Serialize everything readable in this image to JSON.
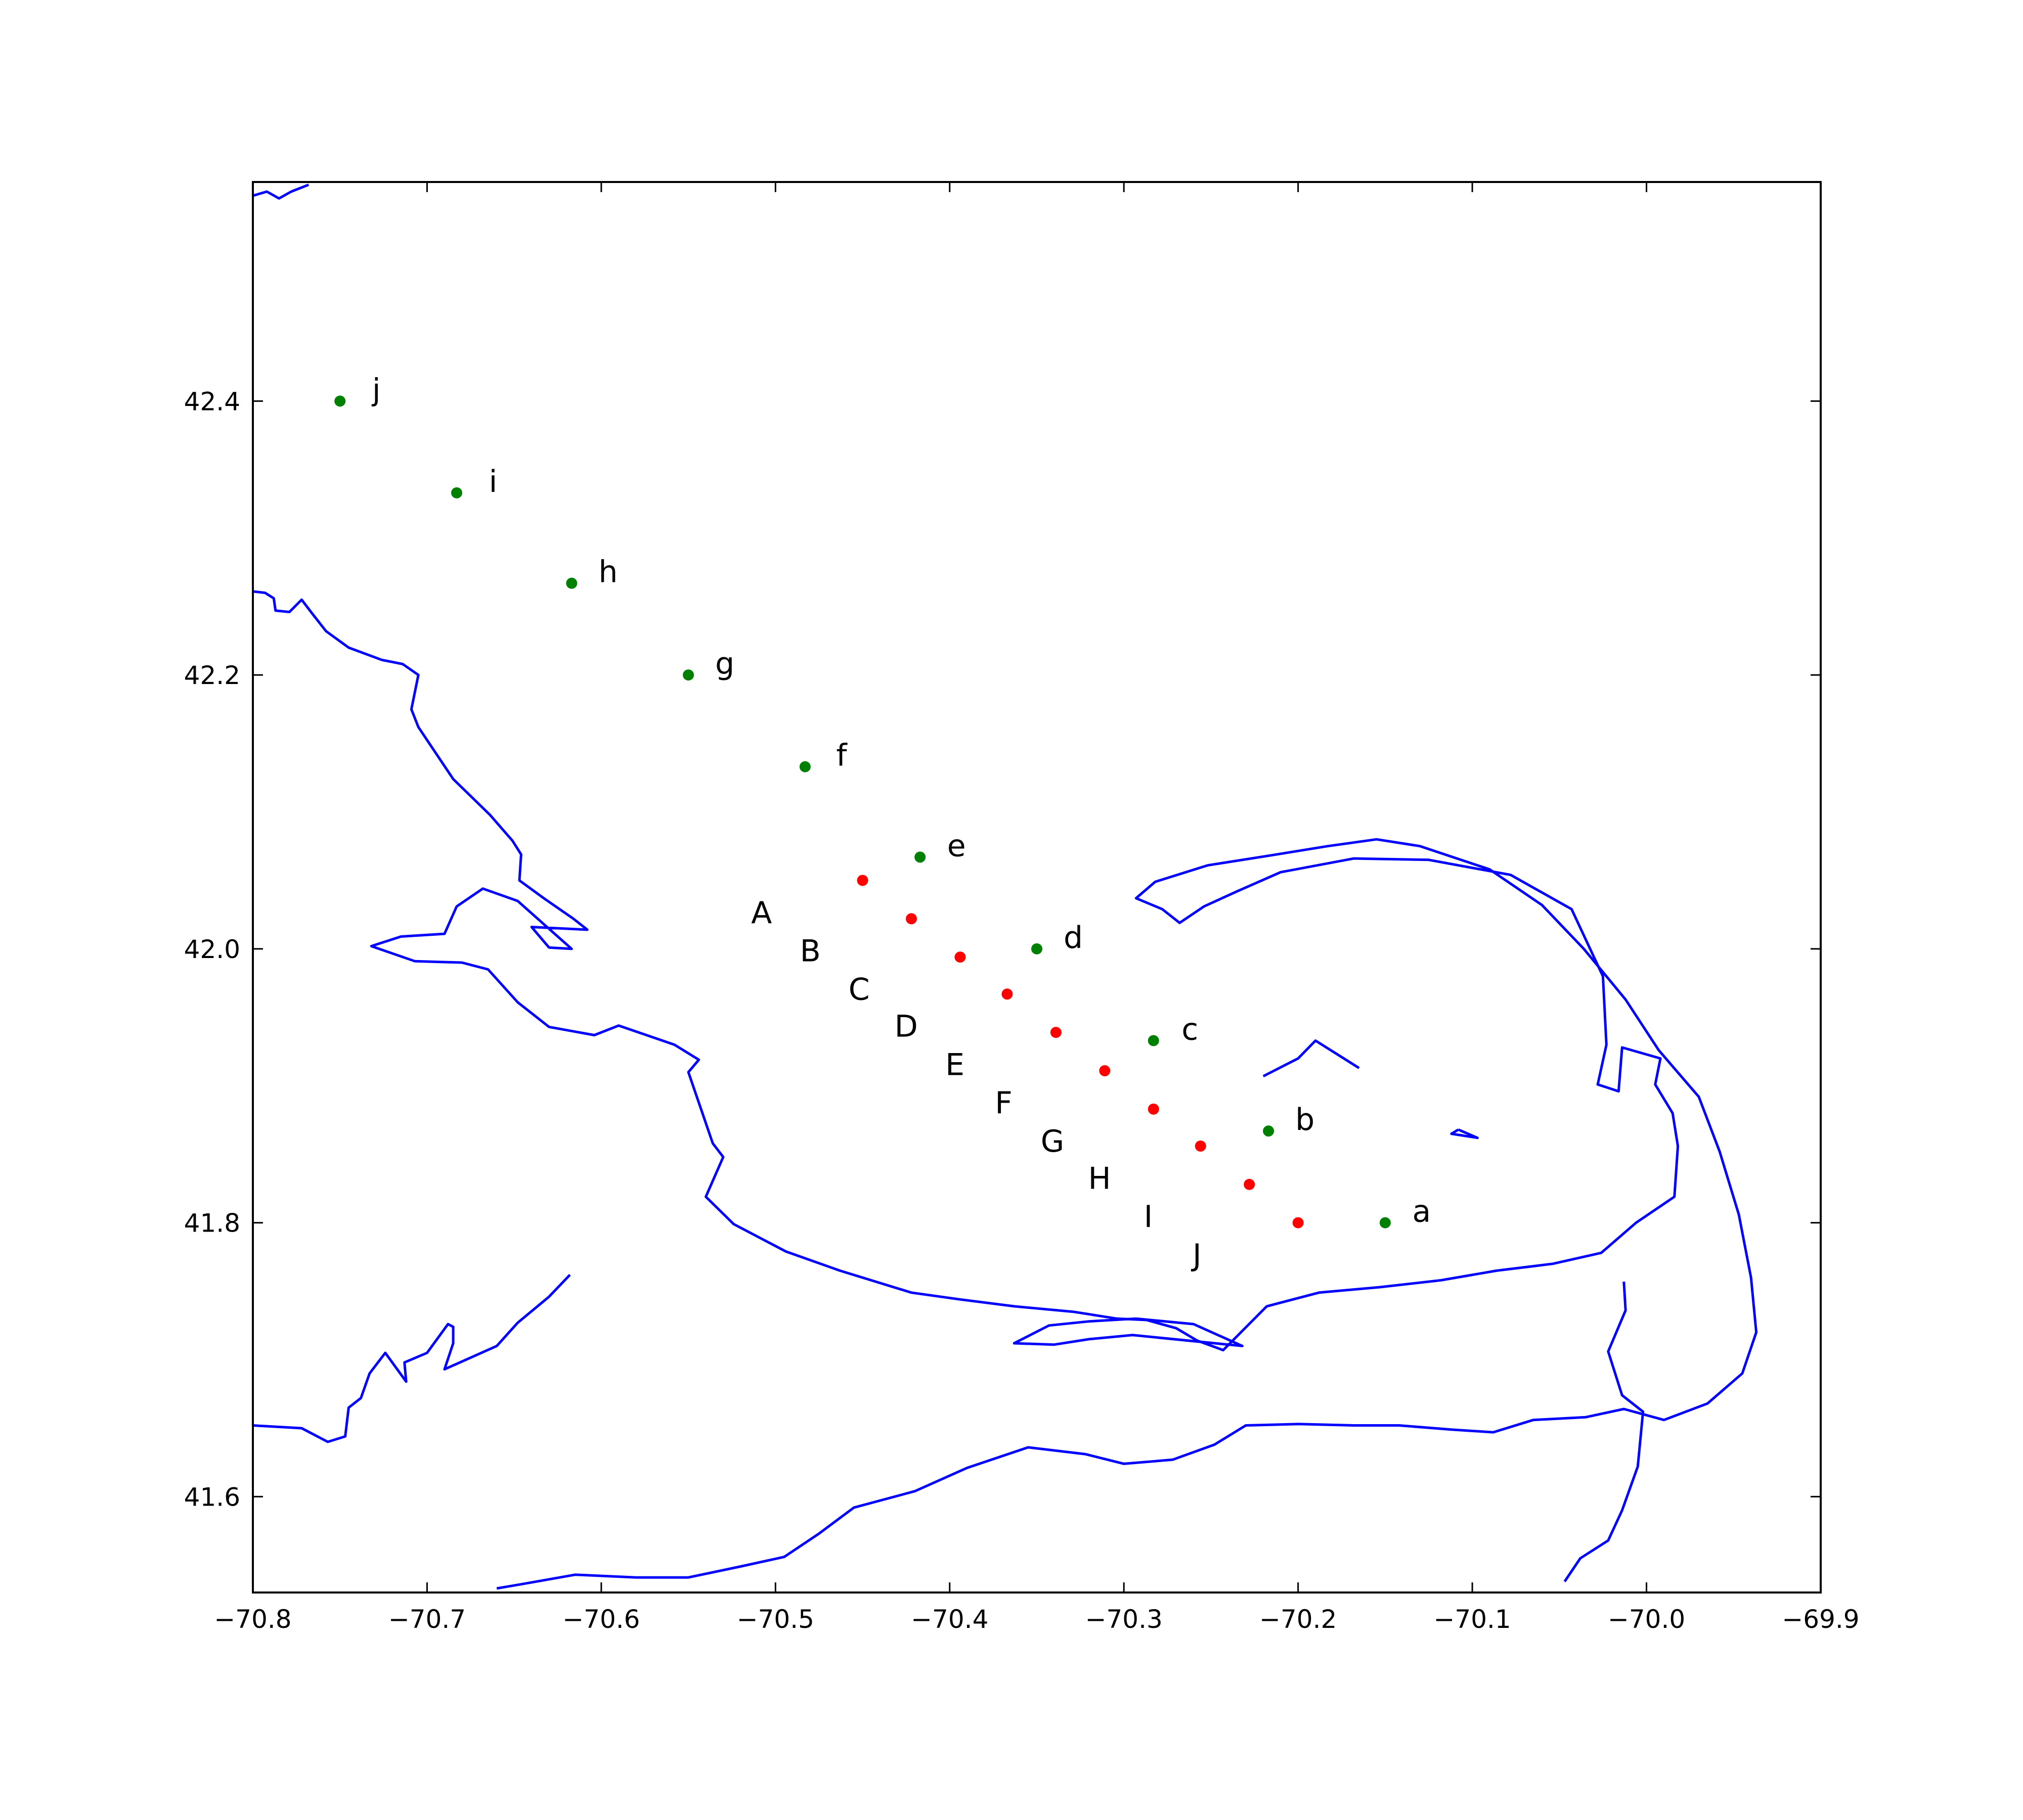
{
  "chart_data": {
    "type": "scatter",
    "title": "",
    "xlabel": "",
    "ylabel": "",
    "xlim": [
      -70.8,
      -69.9
    ],
    "ylim": [
      41.53,
      42.56
    ],
    "grid": false,
    "legend": "none",
    "x_ticks": [
      -70.8,
      -70.7,
      -70.6,
      -70.5,
      -70.4,
      -70.3,
      -70.2,
      -70.1,
      -70.0,
      -69.9
    ],
    "x_tick_labels": [
      "−70.8",
      "−70.7",
      "−70.6",
      "−70.5",
      "−70.4",
      "−70.3",
      "−70.2",
      "−70.1",
      "−70.0",
      "−69.9"
    ],
    "y_ticks": [
      41.6,
      41.8,
      42.0,
      42.2,
      42.4
    ],
    "y_tick_labels": [
      "41.6",
      "41.8",
      "42.0",
      "42.2",
      "42.4"
    ],
    "colors": {
      "coastline": "#0000ff",
      "green_points": "#008000",
      "red_points": "#ff0000",
      "axes": "#000000"
    },
    "green_points": [
      {
        "label": "a",
        "x": -70.15,
        "y": 41.8
      },
      {
        "label": "b",
        "x": -70.217,
        "y": 41.867
      },
      {
        "label": "c",
        "x": -70.283,
        "y": 41.933
      },
      {
        "label": "d",
        "x": -70.35,
        "y": 42.0
      },
      {
        "label": "e",
        "x": -70.417,
        "y": 42.067
      },
      {
        "label": "f",
        "x": -70.483,
        "y": 42.133
      },
      {
        "label": "g",
        "x": -70.55,
        "y": 42.2
      },
      {
        "label": "h",
        "x": -70.617,
        "y": 42.267
      },
      {
        "label": "i",
        "x": -70.683,
        "y": 42.333
      },
      {
        "label": "j",
        "x": -70.75,
        "y": 42.4
      }
    ],
    "red_points": [
      {
        "x": -70.45,
        "y": 42.05
      },
      {
        "x": -70.422,
        "y": 42.022
      },
      {
        "x": -70.394,
        "y": 41.994
      },
      {
        "x": -70.367,
        "y": 41.967
      },
      {
        "x": -70.339,
        "y": 41.939
      },
      {
        "x": -70.311,
        "y": 41.911
      },
      {
        "x": -70.283,
        "y": 41.883
      },
      {
        "x": -70.256,
        "y": 41.856
      },
      {
        "x": -70.228,
        "y": 41.828
      },
      {
        "x": -70.2,
        "y": 41.8
      }
    ],
    "red_labels": [
      {
        "label": "A",
        "x": -70.508,
        "y": 42.027
      },
      {
        "label": "B",
        "x": -70.48,
        "y": 41.999
      },
      {
        "label": "C",
        "x": -70.452,
        "y": 41.971
      },
      {
        "label": "D",
        "x": -70.425,
        "y": 41.944
      },
      {
        "label": "E",
        "x": -70.397,
        "y": 41.916
      },
      {
        "label": "F",
        "x": -70.369,
        "y": 41.888
      },
      {
        "label": "G",
        "x": -70.341,
        "y": 41.86
      },
      {
        "label": "H",
        "x": -70.314,
        "y": 41.833
      },
      {
        "label": "I",
        "x": -70.286,
        "y": 41.805
      },
      {
        "label": "J",
        "x": -70.258,
        "y": 41.777
      }
    ],
    "coastlines": [
      [
        [
          -70.8,
          42.55
        ],
        [
          -70.792,
          42.553
        ],
        [
          -70.785,
          42.548
        ],
        [
          -70.778,
          42.553
        ],
        [
          -70.768,
          42.558
        ]
      ],
      [
        [
          -70.8,
          42.261
        ],
        [
          -70.793,
          42.26
        ],
        [
          -70.788,
          42.256
        ],
        [
          -70.787,
          42.247
        ],
        [
          -70.779,
          42.246
        ],
        [
          -70.772,
          42.255
        ],
        [
          -70.766,
          42.245
        ],
        [
          -70.758,
          42.232
        ],
        [
          -70.745,
          42.22
        ],
        [
          -70.726,
          42.211
        ],
        [
          -70.714,
          42.208
        ],
        [
          -70.705,
          42.2
        ],
        [
          -70.709,
          42.175
        ],
        [
          -70.705,
          42.162
        ],
        [
          -70.685,
          42.124
        ],
        [
          -70.664,
          42.098
        ],
        [
          -70.651,
          42.079
        ],
        [
          -70.646,
          42.069
        ],
        [
          -70.647,
          42.05
        ],
        [
          -70.633,
          42.037
        ],
        [
          -70.616,
          42.022
        ],
        [
          -70.608,
          42.014
        ],
        [
          -70.64,
          42.016
        ],
        [
          -70.63,
          42.001
        ],
        [
          -70.617,
          42.0
        ],
        [
          -70.625,
          42.009
        ],
        [
          -70.648,
          42.035
        ],
        [
          -70.668,
          42.044
        ],
        [
          -70.683,
          42.031
        ],
        [
          -70.69,
          42.011
        ],
        [
          -70.715,
          42.009
        ],
        [
          -70.732,
          42.002
        ],
        [
          -70.707,
          41.991
        ],
        [
          -70.68,
          41.99
        ],
        [
          -70.665,
          41.985
        ],
        [
          -70.648,
          41.961
        ],
        [
          -70.63,
          41.943
        ],
        [
          -70.604,
          41.937
        ],
        [
          -70.59,
          41.944
        ],
        [
          -70.558,
          41.93
        ],
        [
          -70.544,
          41.919
        ],
        [
          -70.55,
          41.91
        ],
        [
          -70.543,
          41.884
        ],
        [
          -70.536,
          41.858
        ],
        [
          -70.53,
          41.848
        ],
        [
          -70.54,
          41.819
        ],
        [
          -70.524,
          41.799
        ],
        [
          -70.494,
          41.779
        ],
        [
          -70.463,
          41.765
        ],
        [
          -70.422,
          41.749
        ],
        [
          -70.394,
          41.744
        ],
        [
          -70.363,
          41.739
        ],
        [
          -70.329,
          41.735
        ],
        [
          -70.304,
          41.73
        ],
        [
          -70.287,
          41.729
        ],
        [
          -70.27,
          41.723
        ],
        [
          -70.258,
          41.714
        ],
        [
          -70.243,
          41.707
        ],
        [
          -70.218,
          41.739
        ],
        [
          -70.188,
          41.749
        ],
        [
          -70.153,
          41.753
        ],
        [
          -70.118,
          41.758
        ],
        [
          -70.086,
          41.765
        ],
        [
          -70.054,
          41.77
        ],
        [
          -70.026,
          41.778
        ],
        [
          -70.006,
          41.8
        ],
        [
          -69.984,
          41.819
        ],
        [
          -69.982,
          41.856
        ],
        [
          -69.985,
          41.88
        ],
        [
          -69.995,
          41.901
        ],
        [
          -69.992,
          41.92
        ],
        [
          -70.014,
          41.928
        ],
        [
          -70.016,
          41.896
        ],
        [
          -70.028,
          41.901
        ],
        [
          -70.023,
          41.93
        ],
        [
          -70.025,
          41.98
        ],
        [
          -70.043,
          42.029
        ],
        [
          -70.078,
          42.054
        ],
        [
          -70.125,
          42.065
        ],
        [
          -70.168,
          42.066
        ],
        [
          -70.21,
          42.056
        ],
        [
          -70.235,
          42.042
        ],
        [
          -70.254,
          42.031
        ],
        [
          -70.268,
          42.019
        ],
        [
          -70.278,
          42.029
        ],
        [
          -70.293,
          42.037
        ],
        [
          -70.282,
          42.049
        ],
        [
          -70.252,
          42.061
        ],
        [
          -70.217,
          42.068
        ],
        [
          -70.183,
          42.075
        ],
        [
          -70.155,
          42.08
        ],
        [
          -70.13,
          42.075
        ],
        [
          -70.09,
          42.058
        ],
        [
          -70.06,
          42.032
        ],
        [
          -70.036,
          42.0
        ],
        [
          -70.012,
          41.963
        ],
        [
          -69.993,
          41.926
        ],
        [
          -69.97,
          41.892
        ],
        [
          -69.958,
          41.852
        ],
        [
          -69.947,
          41.806
        ],
        [
          -69.94,
          41.76
        ],
        [
          -69.937,
          41.72
        ],
        [
          -69.945,
          41.69
        ],
        [
          -69.965,
          41.668
        ],
        [
          -69.99,
          41.656
        ],
        [
          -70.013,
          41.664
        ],
        [
          -70.035,
          41.658
        ],
        [
          -70.065,
          41.656
        ],
        [
          -70.088,
          41.647
        ],
        [
          -70.112,
          41.649
        ],
        [
          -70.142,
          41.652
        ],
        [
          -70.168,
          41.652
        ],
        [
          -70.2,
          41.653
        ],
        [
          -70.23,
          41.652
        ],
        [
          -70.248,
          41.638
        ],
        [
          -70.272,
          41.627
        ],
        [
          -70.3,
          41.624
        ],
        [
          -70.322,
          41.631
        ],
        [
          -70.355,
          41.636
        ],
        [
          -70.39,
          41.621
        ],
        [
          -70.42,
          41.604
        ],
        [
          -70.455,
          41.592
        ],
        [
          -70.475,
          41.573
        ],
        [
          -70.495,
          41.556
        ],
        [
          -70.52,
          41.549
        ],
        [
          -70.55,
          41.541
        ],
        [
          -70.58,
          41.541
        ],
        [
          -70.615,
          41.543
        ],
        [
          -70.646,
          41.536
        ],
        [
          -70.66,
          41.533
        ]
      ],
      [
        [
          -70.8,
          41.652
        ],
        [
          -70.772,
          41.65
        ],
        [
          -70.757,
          41.64
        ],
        [
          -70.747,
          41.644
        ],
        [
          -70.745,
          41.665
        ],
        [
          -70.738,
          41.672
        ],
        [
          -70.733,
          41.69
        ],
        [
          -70.724,
          41.705
        ],
        [
          -70.712,
          41.684
        ],
        [
          -70.713,
          41.698
        ],
        [
          -70.7,
          41.705
        ],
        [
          -70.688,
          41.726
        ],
        [
          -70.685,
          41.724
        ],
        [
          -70.685,
          41.712
        ],
        [
          -70.69,
          41.693
        ],
        [
          -70.66,
          41.71
        ],
        [
          -70.648,
          41.727
        ],
        [
          -70.63,
          41.746
        ],
        [
          -70.618,
          41.762
        ]
      ],
      [
        [
          -70.293,
          41.73
        ],
        [
          -70.26,
          41.726
        ],
        [
          -70.232,
          41.71
        ],
        [
          -70.295,
          41.718
        ],
        [
          -70.32,
          41.715
        ],
        [
          -70.34,
          41.711
        ],
        [
          -70.363,
          41.712
        ],
        [
          -70.343,
          41.725
        ],
        [
          -70.32,
          41.728
        ],
        [
          -70.293,
          41.73
        ]
      ],
      [
        [
          -70.047,
          41.538
        ],
        [
          -70.038,
          41.555
        ],
        [
          -70.022,
          41.568
        ],
        [
          -70.014,
          41.59
        ],
        [
          -70.005,
          41.622
        ],
        [
          -70.002,
          41.662
        ],
        [
          -70.014,
          41.674
        ],
        [
          -70.022,
          41.706
        ],
        [
          -70.012,
          41.736
        ],
        [
          -70.013,
          41.757
        ]
      ],
      [
        [
          -70.22,
          41.907
        ],
        [
          -70.2,
          41.92
        ],
        [
          -70.19,
          41.933
        ],
        [
          -70.165,
          41.913
        ]
      ],
      [
        [
          -70.108,
          41.868
        ],
        [
          -70.097,
          41.862
        ],
        [
          -70.112,
          41.865
        ],
        [
          -70.108,
          41.868
        ]
      ]
    ]
  }
}
